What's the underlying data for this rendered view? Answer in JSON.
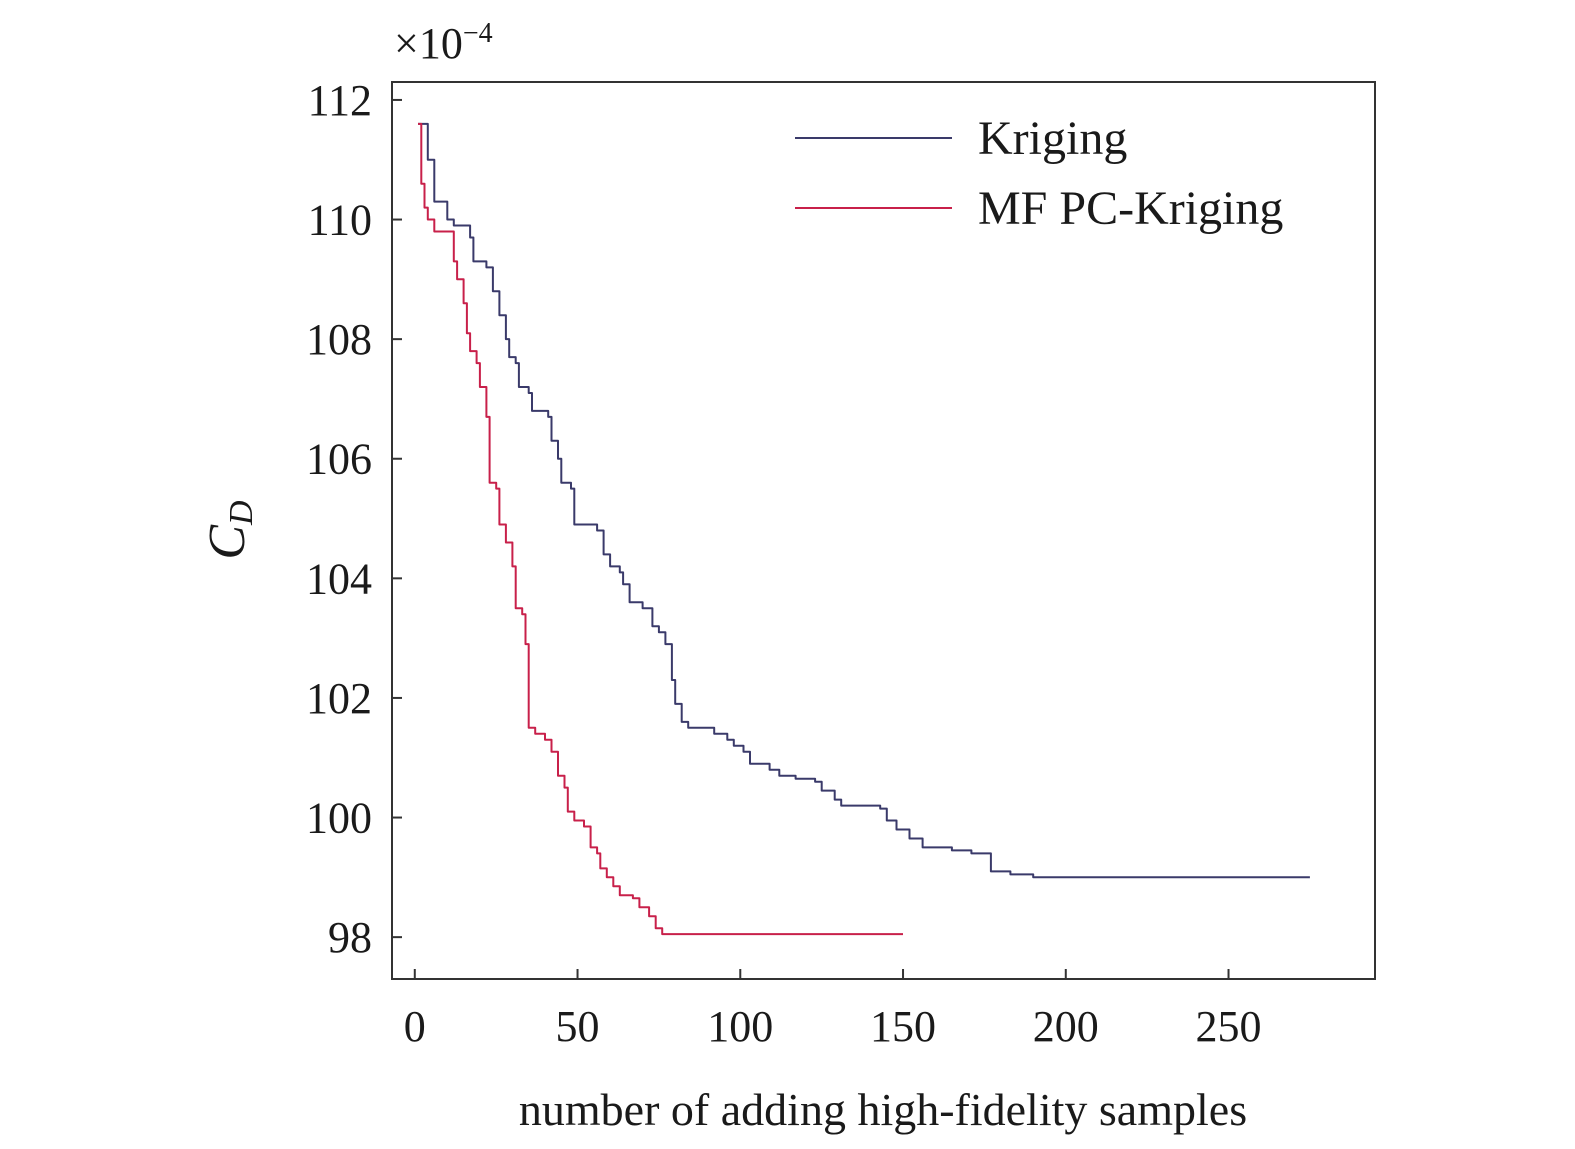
{
  "chart_data": {
    "type": "line",
    "xlabel": "number of adding high-fidelity samples",
    "ylabel_main": "C",
    "ylabel_sub": "D",
    "scale_prefix": "×10",
    "scale_exponent": "−4",
    "xlim": [
      -7,
      295
    ],
    "ylim": [
      97.3,
      112.3
    ],
    "xticks": [
      0,
      50,
      100,
      150,
      200,
      250
    ],
    "xtick_labels": [
      "0",
      "50",
      "100",
      "150",
      "200",
      "250"
    ],
    "yticks": [
      98,
      100,
      102,
      104,
      106,
      108,
      110,
      112
    ],
    "ytick_labels": [
      "98",
      "100",
      "102",
      "104",
      "106",
      "108",
      "110",
      "112"
    ],
    "legend_position": "top-right",
    "grid": false,
    "series": [
      {
        "name": "Kriging",
        "color": "#3a3a6a",
        "points": [
          [
            1,
            111.6
          ],
          [
            2,
            111.6
          ],
          [
            4,
            111.0
          ],
          [
            5,
            111.0
          ],
          [
            6,
            110.3
          ],
          [
            8,
            110.3
          ],
          [
            10,
            110.0
          ],
          [
            12,
            109.9
          ],
          [
            16,
            109.9
          ],
          [
            17,
            109.7
          ],
          [
            18,
            109.3
          ],
          [
            22,
            109.2
          ],
          [
            24,
            108.8
          ],
          [
            26,
            108.4
          ],
          [
            28,
            108.0
          ],
          [
            29,
            107.7
          ],
          [
            31,
            107.6
          ],
          [
            32,
            107.2
          ],
          [
            35,
            107.1
          ],
          [
            36,
            106.8
          ],
          [
            41,
            106.7
          ],
          [
            42,
            106.3
          ],
          [
            44,
            106.0
          ],
          [
            45,
            105.6
          ],
          [
            48,
            105.5
          ],
          [
            49,
            104.9
          ],
          [
            56,
            104.8
          ],
          [
            58,
            104.4
          ],
          [
            60,
            104.2
          ],
          [
            63,
            104.1
          ],
          [
            64,
            103.9
          ],
          [
            66,
            103.6
          ],
          [
            70,
            103.5
          ],
          [
            73,
            103.2
          ],
          [
            75,
            103.1
          ],
          [
            77,
            102.9
          ],
          [
            79,
            102.3
          ],
          [
            80,
            101.9
          ],
          [
            82,
            101.6
          ],
          [
            84,
            101.5
          ],
          [
            92,
            101.4
          ],
          [
            96,
            101.3
          ],
          [
            98,
            101.2
          ],
          [
            101,
            101.1
          ],
          [
            103,
            100.9
          ],
          [
            109,
            100.8
          ],
          [
            112,
            100.7
          ],
          [
            117,
            100.65
          ],
          [
            123,
            100.6
          ],
          [
            125,
            100.45
          ],
          [
            129,
            100.3
          ],
          [
            131,
            100.2
          ],
          [
            143,
            100.15
          ],
          [
            145,
            99.95
          ],
          [
            148,
            99.8
          ],
          [
            152,
            99.65
          ],
          [
            156,
            99.5
          ],
          [
            165,
            99.45
          ],
          [
            171,
            99.4
          ],
          [
            177,
            99.1
          ],
          [
            183,
            99.05
          ],
          [
            190,
            99.0
          ],
          [
            275,
            99.0
          ]
        ]
      },
      {
        "name": "MF PC-Kriging",
        "color": "#c8204a",
        "points": [
          [
            1,
            111.6
          ],
          [
            2,
            110.6
          ],
          [
            3,
            110.2
          ],
          [
            4,
            110.0
          ],
          [
            6,
            109.8
          ],
          [
            11,
            109.8
          ],
          [
            12,
            109.3
          ],
          [
            13,
            109.0
          ],
          [
            15,
            108.6
          ],
          [
            16,
            108.1
          ],
          [
            17,
            107.8
          ],
          [
            19,
            107.6
          ],
          [
            20,
            107.2
          ],
          [
            22,
            106.7
          ],
          [
            23,
            105.6
          ],
          [
            25,
            105.5
          ],
          [
            26,
            104.9
          ],
          [
            28,
            104.6
          ],
          [
            30,
            104.2
          ],
          [
            31,
            103.5
          ],
          [
            33,
            103.4
          ],
          [
            34,
            102.9
          ],
          [
            35,
            101.5
          ],
          [
            37,
            101.4
          ],
          [
            40,
            101.3
          ],
          [
            42,
            101.1
          ],
          [
            44,
            100.7
          ],
          [
            46,
            100.5
          ],
          [
            47,
            100.1
          ],
          [
            49,
            99.95
          ],
          [
            52,
            99.85
          ],
          [
            54,
            99.5
          ],
          [
            56,
            99.4
          ],
          [
            57,
            99.15
          ],
          [
            59,
            99.0
          ],
          [
            61,
            98.85
          ],
          [
            63,
            98.7
          ],
          [
            67,
            98.65
          ],
          [
            69,
            98.5
          ],
          [
            72,
            98.35
          ],
          [
            74,
            98.15
          ],
          [
            76,
            98.05
          ],
          [
            150,
            98.05
          ]
        ]
      }
    ]
  }
}
